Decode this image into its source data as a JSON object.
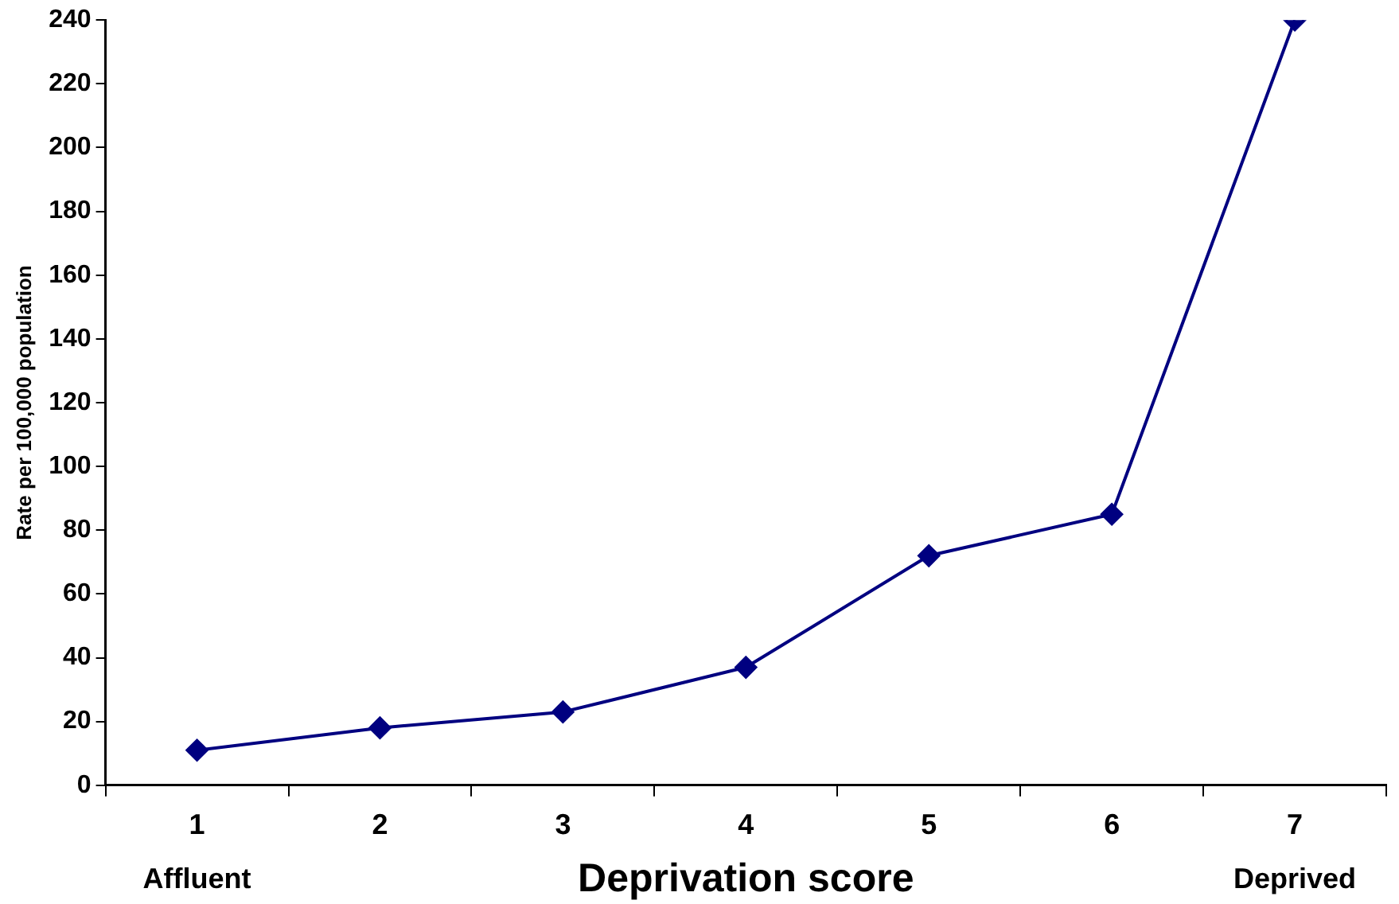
{
  "chart_data": {
    "type": "line",
    "xlabel": "Deprivation score",
    "ylabel": "Rate per 100,000 population",
    "categories": [
      "1",
      "2",
      "3",
      "4",
      "5",
      "6",
      "7"
    ],
    "series": [
      {
        "color": "#000080",
        "values": [
          11,
          18,
          23,
          37,
          72,
          85,
          240
        ]
      }
    ],
    "ylim": [
      0,
      240
    ],
    "yticks": [
      0,
      20,
      40,
      60,
      80,
      100,
      120,
      140,
      160,
      180,
      200,
      220,
      240
    ],
    "grid": false,
    "legend": false,
    "marker": "diamond",
    "line_style": "solid",
    "annotations": [
      "Affluent",
      "Deprived"
    ]
  }
}
